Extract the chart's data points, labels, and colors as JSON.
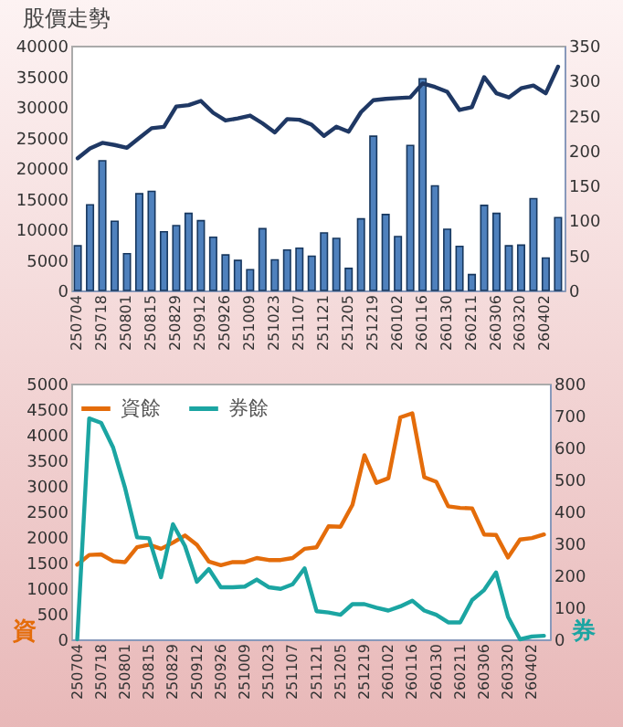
{
  "chart_data": [
    {
      "type": "bar",
      "title": "股價走勢",
      "categories": [
        "250704",
        null,
        "250718",
        null,
        "250801",
        null,
        "250815",
        null,
        "250829",
        null,
        "250912",
        null,
        "250926",
        null,
        "251009",
        null,
        "251023",
        null,
        "251107",
        null,
        "251121",
        null,
        "251205",
        null,
        "251219",
        null,
        "260102",
        null,
        "260116",
        null,
        "260130",
        null,
        "260211",
        null,
        "260306",
        null,
        "260320",
        null,
        "260402",
        null
      ],
      "series": [
        {
          "color": "#4f81bd",
          "values": [
            7300,
            14000,
            21200,
            11300,
            6000,
            15800,
            16200,
            9600,
            10600,
            12600,
            11400,
            8700,
            5800,
            4900,
            3400,
            10100,
            5000,
            6600,
            6900,
            5600,
            9400,
            8500,
            3600,
            11700,
            25200,
            12400,
            8800,
            23700,
            34600,
            17100,
            10000,
            7200,
            2600,
            13900,
            12600,
            7300,
            7400,
            15000,
            5300,
            11900
          ]
        },
        {
          "type": "line",
          "axis": "y2",
          "color": "#1f3864",
          "values": [
            189,
            203,
            211,
            208,
            204,
            218,
            232,
            234,
            263,
            265,
            271,
            254,
            243,
            246,
            250,
            239,
            226,
            245,
            244,
            237,
            221,
            234,
            227,
            255,
            272,
            274,
            275,
            276,
            296,
            291,
            284,
            258,
            262,
            305,
            282,
            276,
            289,
            293,
            282,
            320
          ]
        }
      ],
      "ylim": [
        0,
        40000
      ],
      "yticks": [
        0,
        5000,
        10000,
        15000,
        20000,
        25000,
        30000,
        35000,
        40000
      ],
      "y2lim": [
        0,
        350
      ],
      "y2ticks": [
        0,
        50,
        100,
        150,
        200,
        250,
        300,
        350
      ]
    },
    {
      "type": "line",
      "ylabel": "資",
      "y2label": "券",
      "categories": [
        "250704",
        null,
        "250718",
        null,
        "250801",
        null,
        "250815",
        null,
        "250829",
        null,
        "250912",
        null,
        "250926",
        null,
        "251009",
        null,
        "251023",
        null,
        "251107",
        null,
        "251121",
        null,
        "251205",
        null,
        "251219",
        null,
        "260102",
        null,
        "260116",
        null,
        "260130",
        null,
        "260211",
        null,
        "260306",
        null,
        "260320",
        null,
        "260402",
        null
      ],
      "series": [
        {
          "name": "資餘",
          "color": "#e46c0a",
          "values": [
            1460,
            1650,
            1660,
            1530,
            1510,
            1800,
            1850,
            1770,
            1890,
            2030,
            1850,
            1520,
            1450,
            1510,
            1510,
            1590,
            1550,
            1550,
            1590,
            1770,
            1800,
            2210,
            2200,
            2630,
            3600,
            3060,
            3150,
            4340,
            4420,
            3170,
            3080,
            2600,
            2570,
            2560,
            2050,
            2040,
            1600,
            1950,
            1980,
            2050
          ]
        },
        {
          "name": "券餘",
          "axis": "y2",
          "color": "#1ba5a2",
          "values": [
            0,
            691,
            677,
            600,
            473,
            319,
            316,
            194,
            360,
            292,
            180,
            220,
            163,
            163,
            165,
            187,
            163,
            158,
            172,
            222,
            88,
            84,
            77,
            110,
            110,
            99,
            90,
            103,
            121,
            90,
            77,
            53,
            53,
            123,
            154,
            209,
            70,
            0,
            9,
            11
          ]
        }
      ],
      "ylim": [
        0,
        5000
      ],
      "yticks": [
        0,
        500,
        1000,
        1500,
        2000,
        2500,
        3000,
        3500,
        4000,
        4500,
        5000
      ],
      "y2lim": [
        0,
        800
      ],
      "y2ticks": [
        0,
        100,
        200,
        300,
        400,
        500,
        600,
        700,
        800
      ],
      "legend": "top left"
    }
  ]
}
